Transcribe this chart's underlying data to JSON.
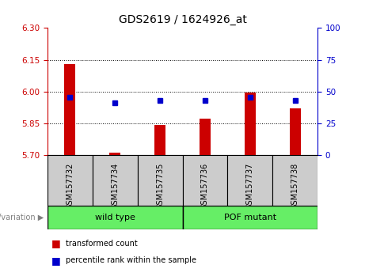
{
  "title": "GDS2619 / 1624926_at",
  "samples": [
    "GSM157732",
    "GSM157734",
    "GSM157735",
    "GSM157736",
    "GSM157737",
    "GSM157738"
  ],
  "red_bar_values": [
    6.13,
    5.712,
    5.845,
    5.872,
    5.995,
    5.922
  ],
  "blue_square_values": [
    5.972,
    5.946,
    5.958,
    5.96,
    5.972,
    5.958
  ],
  "ylim": [
    5.7,
    6.3
  ],
  "yticks_left": [
    5.7,
    5.85,
    6.0,
    6.15,
    6.3
  ],
  "yticks_right": [
    0,
    25,
    50,
    75,
    100
  ],
  "right_ylim": [
    0,
    100
  ],
  "grid_values": [
    5.85,
    6.0,
    6.15
  ],
  "wild_type_label": "wild type",
  "pof_mutant_label": "POF mutant",
  "genotype_label": "genotype/variation",
  "legend_red": "transformed count",
  "legend_blue": "percentile rank within the sample",
  "bar_color": "#cc0000",
  "blue_color": "#0000cc",
  "green_color": "#66ee66",
  "gray_bg": "#cccccc",
  "bar_width": 0.25,
  "left_tick_color": "#cc0000",
  "right_tick_color": "#0000cc",
  "n_wild": 3,
  "n_pof": 3
}
